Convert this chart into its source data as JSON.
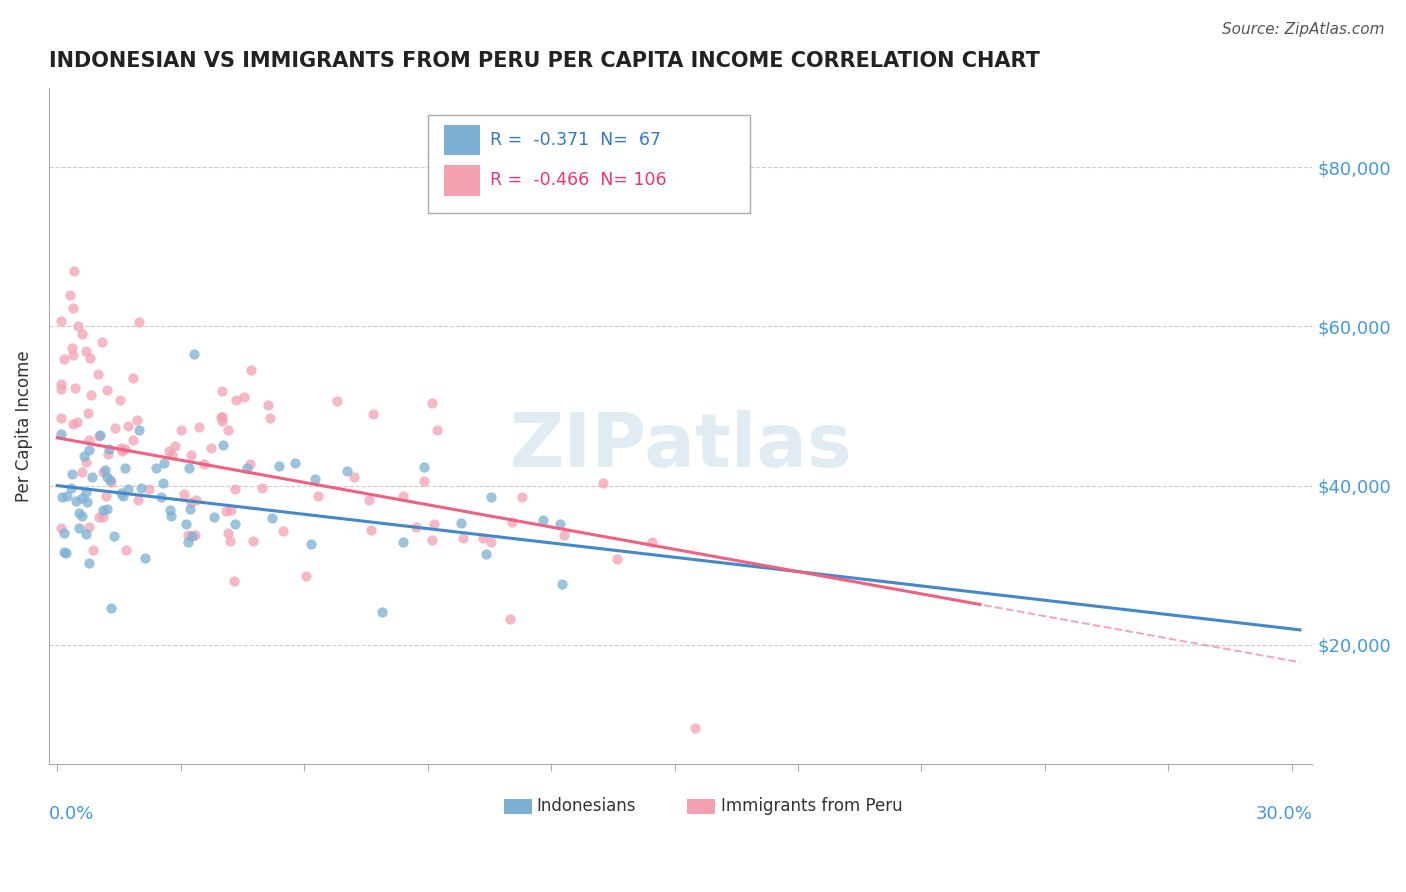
{
  "title": "INDONESIAN VS IMMIGRANTS FROM PERU PER CAPITA INCOME CORRELATION CHART",
  "source_text": "Source: ZipAtlas.com",
  "ylabel": "Per Capita Income",
  "xlim": [
    -0.002,
    0.305
  ],
  "ylim": [
    5000,
    90000
  ],
  "ytick_values": [
    20000,
    40000,
    60000,
    80000
  ],
  "ytick_labels": [
    "$20,000",
    "$40,000",
    "$60,000",
    "$80,000"
  ],
  "legend1_R": "-0.371",
  "legend1_N": "67",
  "legend2_R": "-0.466",
  "legend2_N": "106",
  "blue_color": "#7BAFD4",
  "pink_color": "#F4A0B0",
  "trend_blue": "#4488CC",
  "trend_pink": "#F06080",
  "watermark": "ZIPatlas",
  "legend_label1": "Indonesians",
  "legend_label2": "Immigrants from Peru",
  "intercept_indo": 40000,
  "slope_indo": -60000,
  "intercept_peru": 46000,
  "slope_peru": -93333
}
